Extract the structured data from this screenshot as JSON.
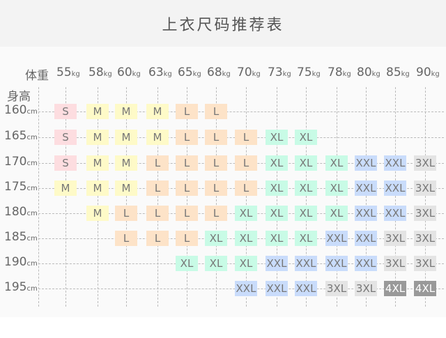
{
  "title": "上衣尺码推荐表",
  "weight_label": "体重",
  "height_label": "身高",
  "weight_unit": "kg",
  "height_unit": "cm",
  "weights": [
    "55",
    "58",
    "60",
    "63",
    "65",
    "68",
    "70",
    "73",
    "75",
    "78",
    "80",
    "85",
    "90"
  ],
  "heights": [
    "160",
    "165",
    "170",
    "175",
    "180",
    "185",
    "190",
    "195"
  ],
  "size_colors": {
    "S": "#fddde0",
    "M": "#fefac8",
    "L": "#fde3c8",
    "XL": "#c8fbe6",
    "XXL": "#c9dcfb",
    "3XL": "#e4e4e4",
    "4XL": "#999999"
  },
  "rows": [
    [
      "S",
      "M",
      "M",
      "M",
      "L",
      "L",
      "",
      "",
      "",
      "",
      "",
      "",
      ""
    ],
    [
      "S",
      "M",
      "M",
      "M",
      "L",
      "L",
      "L",
      "XL",
      "XL",
      "",
      "",
      "",
      ""
    ],
    [
      "S",
      "M",
      "M",
      "L",
      "L",
      "L",
      "L",
      "XL",
      "XL",
      "XL",
      "XXL",
      "XXL",
      "3XL"
    ],
    [
      "M",
      "M",
      "M",
      "L",
      "L",
      "L",
      "L",
      "XL",
      "XL",
      "XL",
      "XXL",
      "XXL",
      "3XL"
    ],
    [
      "",
      "M",
      "L",
      "L",
      "L",
      "L",
      "XL",
      "XL",
      "XL",
      "XL",
      "XXL",
      "XXL",
      "3XL"
    ],
    [
      "",
      "",
      "L",
      "L",
      "L",
      "XL",
      "XL",
      "XL",
      "XL",
      "XXL",
      "XXL",
      "3XL",
      "3XL"
    ],
    [
      "",
      "",
      "",
      "",
      "XL",
      "XL",
      "XL",
      "XXL",
      "XXL",
      "XXL",
      "XXL",
      "3XL",
      "3XL"
    ],
    [
      "",
      "",
      "",
      "",
      "",
      "",
      "XXL",
      "XXL",
      "XXL",
      "3XL",
      "3XL",
      "4XL",
      "4XL"
    ]
  ]
}
